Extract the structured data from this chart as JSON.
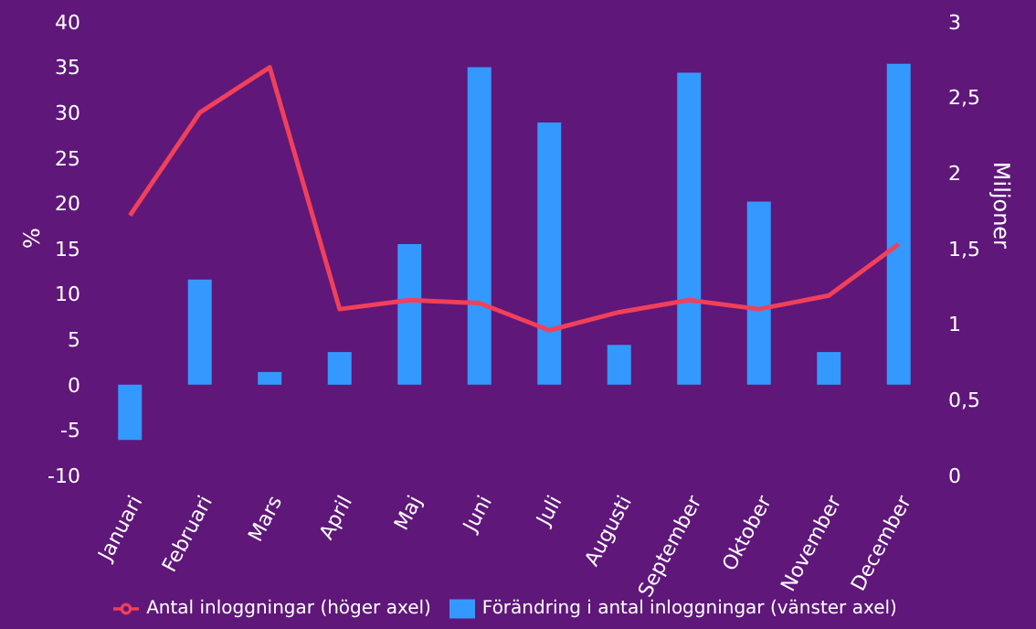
{
  "chart_data": {
    "type": "bar",
    "categories": [
      "Januari",
      "Februari",
      "Mars",
      "April",
      "Maj",
      "Juni",
      "Juli",
      "Augusti",
      "September",
      "Oktober",
      "November",
      "December"
    ],
    "series": [
      {
        "name": "Förändring i antal inloggningar (vänster axel)",
        "color": "#3399ff",
        "values": [
          -6.1,
          11.6,
          1.4,
          3.6,
          15.5,
          35,
          28.9,
          4.4,
          34.4,
          20.2,
          3.6,
          35.4
        ]
      },
      {
        "name": "Antal inloggningar (höger axel)",
        "type": "line",
        "axis": "y2",
        "color": "#f0405a",
        "values": [
          1.72,
          2.4,
          2.7,
          1.1,
          1.16,
          1.14,
          0.96,
          1.08,
          1.16,
          1.1,
          1.19,
          1.53
        ]
      }
    ],
    "ylabel": "%",
    "y2label": "Miljoner",
    "ylim": [
      -10,
      40
    ],
    "yticks": [
      -10,
      -5,
      0,
      5,
      10,
      15,
      20,
      25,
      30,
      35,
      40
    ],
    "y2lim": [
      0,
      3
    ],
    "y2ticks": [
      0,
      {
        "value": 0.5,
        "label": "0,5"
      },
      1,
      {
        "value": 1.5,
        "label": "1,5"
      },
      2,
      {
        "value": 2.5,
        "label": "2,5"
      },
      3
    ],
    "grid": false,
    "legend": "bottom",
    "marker": "none"
  }
}
